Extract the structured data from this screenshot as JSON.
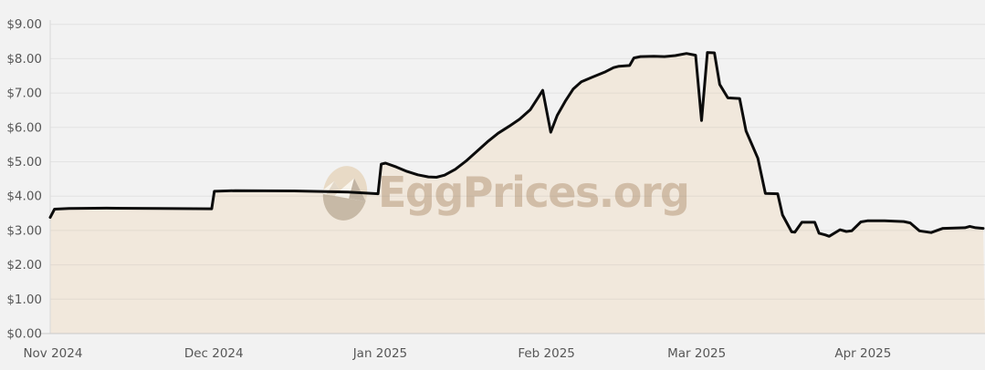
{
  "watermark": {
    "text": "EggPrices.org",
    "text_color": "#cfbaa3",
    "egg_icon_colors": {
      "shell_top": "#e8dac6",
      "shell_bottom": "#c7b9a6",
      "mountain_white": "#f9f5ed",
      "mountain_shade": "#c2b4a3"
    }
  },
  "chart_data": {
    "type": "area",
    "description": "Average egg price in USD over time, Nov 2024 through late Apr 2025",
    "background_color": "#f2f2f2",
    "line_color": "#0c0c0c",
    "fill_color": "#f1e8dc",
    "grid_color": "#808080",
    "axis_color": "#c9c9c9",
    "label_color": "#575757",
    "ylim": [
      0,
      9
    ],
    "xlim_days": [
      -0.5,
      173.4
    ],
    "grid": true,
    "legend": "none",
    "y_ticks": [
      {
        "label": "$9.00",
        "value": 9
      },
      {
        "label": "$8.00",
        "value": 8
      },
      {
        "label": "$7.00",
        "value": 7
      },
      {
        "label": "$6.00",
        "value": 6
      },
      {
        "label": "$5.00",
        "value": 5
      },
      {
        "label": "$4.00",
        "value": 4
      },
      {
        "label": "$3.00",
        "value": 3
      },
      {
        "label": "$2.00",
        "value": 2
      },
      {
        "label": "$1.00",
        "value": 1
      },
      {
        "label": "$0.00",
        "value": 0
      }
    ],
    "x_ticks": [
      {
        "label": "Nov 2024",
        "day": 0
      },
      {
        "label": "Dec 2024",
        "day": 30
      },
      {
        "label": "Jan 2025",
        "day": 61
      },
      {
        "label": "Feb 2025",
        "day": 92
      },
      {
        "label": "Mar 2025",
        "day": 120
      },
      {
        "label": "Apr 2025",
        "day": 151
      }
    ],
    "series": [
      {
        "points_day_usd": [
          [
            -0.5,
            3.38
          ],
          [
            0.3,
            3.62
          ],
          [
            3,
            3.64
          ],
          [
            10,
            3.65
          ],
          [
            20,
            3.64
          ],
          [
            29.6,
            3.63
          ],
          [
            30.1,
            4.14
          ],
          [
            34,
            4.16
          ],
          [
            45,
            4.15
          ],
          [
            55,
            4.12
          ],
          [
            60.6,
            4.07
          ],
          [
            61.2,
            4.93
          ],
          [
            62,
            4.96
          ],
          [
            64,
            4.85
          ],
          [
            66,
            4.72
          ],
          [
            68,
            4.62
          ],
          [
            70,
            4.56
          ],
          [
            71.5,
            4.55
          ],
          [
            73,
            4.61
          ],
          [
            75,
            4.78
          ],
          [
            77,
            5.02
          ],
          [
            79,
            5.3
          ],
          [
            81,
            5.58
          ],
          [
            83,
            5.83
          ],
          [
            85,
            6.03
          ],
          [
            87,
            6.24
          ],
          [
            89,
            6.52
          ],
          [
            90.5,
            6.88
          ],
          [
            91.3,
            7.08
          ],
          [
            92.8,
            5.86
          ],
          [
            94,
            6.35
          ],
          [
            95.5,
            6.76
          ],
          [
            97,
            7.12
          ],
          [
            98.5,
            7.33
          ],
          [
            100.5,
            7.46
          ],
          [
            103,
            7.62
          ],
          [
            104.5,
            7.74
          ],
          [
            105.5,
            7.78
          ],
          [
            107.5,
            7.8
          ],
          [
            108.3,
            8.02
          ],
          [
            109.5,
            8.06
          ],
          [
            112,
            8.07
          ],
          [
            114,
            8.06
          ],
          [
            116,
            8.09
          ],
          [
            118.1,
            8.15
          ],
          [
            119.8,
            8.1
          ],
          [
            120.9,
            6.2
          ],
          [
            122.0,
            8.18
          ],
          [
            123.3,
            8.17
          ],
          [
            124.3,
            7.25
          ],
          [
            125.8,
            6.86
          ],
          [
            128.0,
            6.84
          ],
          [
            129.2,
            5.9
          ],
          [
            131.4,
            5.1
          ],
          [
            132.8,
            4.08
          ],
          [
            135.1,
            4.07
          ],
          [
            136.0,
            3.45
          ],
          [
            137.7,
            2.96
          ],
          [
            138.3,
            2.95
          ],
          [
            139.6,
            3.24
          ],
          [
            142.0,
            3.24
          ],
          [
            142.8,
            2.92
          ],
          [
            144.0,
            2.87
          ],
          [
            144.7,
            2.83
          ],
          [
            146.7,
            3.02
          ],
          [
            147.9,
            2.97
          ],
          [
            148.9,
            2.99
          ],
          [
            150.6,
            3.25
          ],
          [
            151.8,
            3.28
          ],
          [
            155.0,
            3.28
          ],
          [
            158.6,
            3.26
          ],
          [
            159.8,
            3.22
          ],
          [
            161.5,
            2.99
          ],
          [
            163.7,
            2.94
          ],
          [
            165.9,
            3.06
          ],
          [
            168.0,
            3.07
          ],
          [
            170.0,
            3.08
          ],
          [
            170.9,
            3.12
          ],
          [
            172.0,
            3.08
          ],
          [
            173.4,
            3.06
          ]
        ]
      }
    ]
  }
}
